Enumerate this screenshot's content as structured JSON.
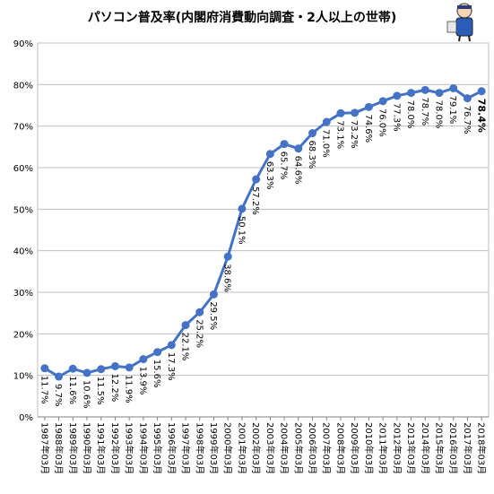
{
  "colors": {
    "line": "#4472C4",
    "marker": "#4472C4",
    "grid": "#BFBFBF",
    "axis": "#808080"
  },
  "mascot": {
    "icon": "cartoon-mascot-icon"
  },
  "chart_data": {
    "type": "line",
    "title": "パソコン普及率(内閣府消費動向調査・2人以上の世帯)",
    "xlabel": "",
    "ylabel": "",
    "ylim": [
      0,
      90
    ],
    "yticks": [
      "0%",
      "10%",
      "20%",
      "30%",
      "40%",
      "50%",
      "60%",
      "70%",
      "80%",
      "90%"
    ],
    "grid": true,
    "legend": "none",
    "categories": [
      "1987年03月",
      "1988年03月",
      "1989年03月",
      "1990年03月",
      "1991年03月",
      "1992年03月",
      "1993年03月",
      "1994年03月",
      "1995年03月",
      "1996年03月",
      "1997年03月",
      "1998年03月",
      "1999年03月",
      "2000年03月",
      "2001年03月",
      "2002年03月",
      "2003年03月",
      "2004年03月",
      "2005年03月",
      "2006年03月",
      "2007年03月",
      "2008年03月",
      "2009年03月",
      "2010年03月",
      "2011年03月",
      "2012年03月",
      "2013年03月",
      "2014年03月",
      "2015年03月",
      "2016年03月",
      "2017年03月",
      "2018年03月"
    ],
    "series": [
      {
        "values": [
          11.7,
          9.7,
          11.6,
          10.6,
          11.5,
          12.2,
          11.9,
          13.9,
          15.6,
          17.3,
          22.1,
          25.2,
          29.5,
          38.6,
          50.1,
          57.2,
          63.3,
          65.7,
          64.6,
          68.3,
          71.0,
          73.1,
          73.2,
          74.6,
          76.0,
          77.3,
          78.0,
          78.7,
          78.0,
          79.1,
          76.7,
          78.4
        ],
        "labels": [
          "11.7%",
          "9.7%",
          "11.6%",
          "10.6%",
          "11.5%",
          "12.2%",
          "11.9%",
          "13.9%",
          "15.6%",
          "17.3%",
          "22.1%",
          "25.2%",
          "29.5%",
          "38.6%",
          "50.1%",
          "57.2%",
          "63.3%",
          "65.7%",
          "64.6%",
          "68.3%",
          "71.0%",
          "73.1%",
          "73.2%",
          "74.6%",
          "76.0%",
          "77.3%",
          "78.0%",
          "78.7%",
          "78.0%",
          "79.1%",
          "76.7%",
          "78.4%"
        ]
      }
    ]
  }
}
